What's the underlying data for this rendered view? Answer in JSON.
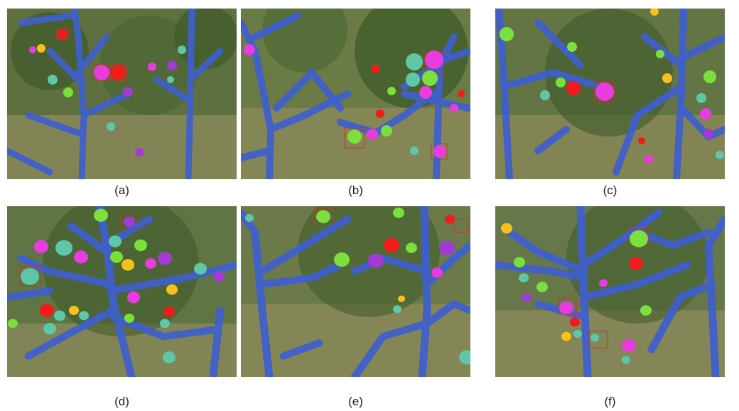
{
  "figure": {
    "panels": [
      {
        "caption": "(a)"
      },
      {
        "caption": "(b)"
      },
      {
        "caption": "(c)"
      },
      {
        "caption": "(d)"
      },
      {
        "caption": "(e)"
      },
      {
        "caption": "(f)"
      }
    ]
  },
  "colors": {
    "branch_mask": "#3f5fd0",
    "box_outline": "#c0392b",
    "fruit_magenta": "#e83ce0",
    "fruit_green": "#7be03c",
    "fruit_red": "#f21b1b",
    "fruit_teal": "#5ec7a8",
    "fruit_yellow": "#f6c21a",
    "fruit_purple": "#a33ad6",
    "foliage_dark": "#3e5a2a",
    "ground": "#8c8a5a"
  }
}
